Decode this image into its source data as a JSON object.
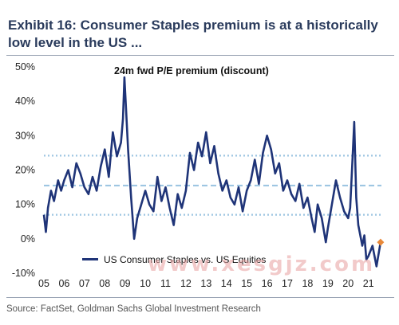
{
  "title": "Exhibit 16: Consumer Staples premium is at a historically low level in the US ...",
  "source": "Source: FactSet, Goldman Sachs Global Investment Research",
  "watermark": "www.xesgjz.com",
  "colors": {
    "series": "#1f3478",
    "reference": "#9ec6e2",
    "marker": "#e8893a",
    "title": "#2a3b5c"
  },
  "chart_data": {
    "type": "line",
    "subtitle": "24m fwd P/E premium (discount)",
    "ylim": [
      -10,
      50
    ],
    "yticks": [
      "50%",
      "40%",
      "30%",
      "20%",
      "10%",
      "0%",
      "-10%"
    ],
    "ytick_values": [
      50,
      40,
      30,
      20,
      10,
      0,
      -10
    ],
    "xlim": [
      2005,
      2021.8
    ],
    "xticks": [
      "05",
      "06",
      "07",
      "08",
      "09",
      "10",
      "11",
      "12",
      "13",
      "14",
      "15",
      "16",
      "17",
      "18",
      "19",
      "20",
      "21"
    ],
    "xtick_values": [
      2005,
      2006,
      2007,
      2008,
      2009,
      2010,
      2011,
      2012,
      2013,
      2014,
      2015,
      2016,
      2017,
      2018,
      2019,
      2020,
      2021
    ],
    "reference_lines": [
      {
        "value": 24.2,
        "style": "dotted"
      },
      {
        "value": 15.5,
        "style": "dashed"
      },
      {
        "value": 7.0,
        "style": "dotted"
      }
    ],
    "legend": {
      "placement": "bottom-left"
    },
    "grid": false,
    "series": [
      {
        "name": "US Consumer Staples vs. US Equities",
        "x": [
          2005.0,
          2005.1,
          2005.2,
          2005.35,
          2005.5,
          2005.7,
          2005.85,
          2006.0,
          2006.2,
          2006.4,
          2006.6,
          2006.8,
          2007.0,
          2007.2,
          2007.4,
          2007.6,
          2007.8,
          2008.0,
          2008.2,
          2008.4,
          2008.6,
          2008.8,
          2008.9,
          2008.97,
          2009.05,
          2009.15,
          2009.3,
          2009.45,
          2009.6,
          2009.8,
          2010.0,
          2010.2,
          2010.4,
          2010.6,
          2010.8,
          2011.0,
          2011.2,
          2011.4,
          2011.6,
          2011.8,
          2012.0,
          2012.2,
          2012.4,
          2012.6,
          2012.8,
          2013.0,
          2013.2,
          2013.4,
          2013.6,
          2013.8,
          2014.0,
          2014.2,
          2014.4,
          2014.6,
          2014.8,
          2015.0,
          2015.2,
          2015.4,
          2015.6,
          2015.8,
          2016.0,
          2016.2,
          2016.4,
          2016.6,
          2016.8,
          2017.0,
          2017.2,
          2017.4,
          2017.6,
          2017.8,
          2018.0,
          2018.2,
          2018.35,
          2018.5,
          2018.7,
          2018.9,
          2019.0,
          2019.2,
          2019.4,
          2019.6,
          2019.8,
          2020.0,
          2020.1,
          2020.2,
          2020.3,
          2020.4,
          2020.5,
          2020.6,
          2020.7,
          2020.8,
          2020.9,
          2021.0,
          2021.2,
          2021.4,
          2021.6
        ],
        "values": [
          7,
          2,
          9,
          14,
          11,
          17,
          14,
          17,
          20,
          15,
          22,
          19,
          15,
          13,
          18,
          14,
          21,
          26,
          18,
          31,
          24,
          28,
          35,
          47,
          38,
          26,
          12,
          0,
          6,
          10,
          14,
          10,
          8,
          18,
          11,
          15,
          9,
          4,
          13,
          9,
          14,
          25,
          20,
          28,
          24,
          31,
          22,
          27,
          19,
          14,
          17,
          12,
          10,
          15,
          8,
          14,
          17,
          23,
          16,
          25,
          30,
          26,
          19,
          22,
          14,
          17,
          13,
          11,
          16,
          9,
          12,
          6,
          2,
          10,
          6,
          -1,
          3,
          10,
          17,
          12,
          8,
          6,
          9,
          21,
          34,
          12,
          4,
          1,
          -2,
          1,
          -6,
          -5,
          -2,
          -8,
          -1
        ]
      }
    ],
    "annotations": [
      {
        "x": 2021.6,
        "y": -1,
        "type": "marker"
      }
    ]
  }
}
